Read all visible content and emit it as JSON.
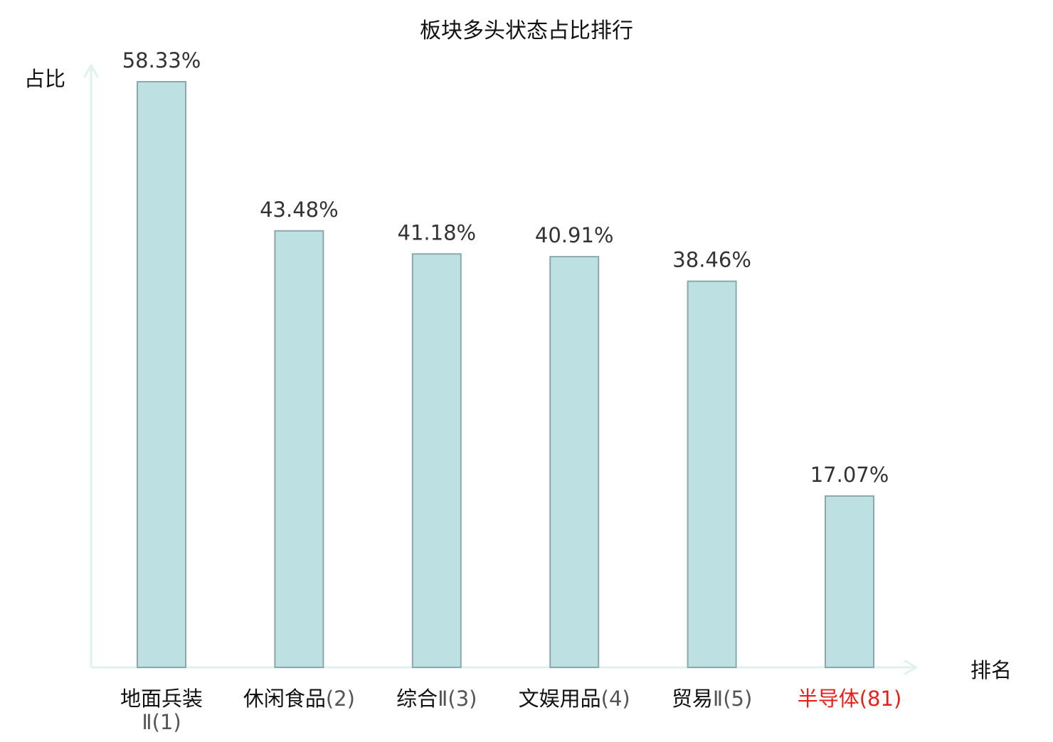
{
  "chart_data": {
    "type": "bar",
    "title": "板块多头状态占比排行",
    "ylabel": "占比",
    "xlabel": "排名",
    "ylim": [
      0,
      58.33
    ],
    "grid": false,
    "categories": [
      {
        "name": "地面兵装",
        "rank": "Ⅱ(1)",
        "highlight": false
      },
      {
        "name": "休闲食品",
        "rank": "(2)",
        "highlight": false
      },
      {
        "name": "综合",
        "rank": "Ⅱ(3)",
        "highlight": false
      },
      {
        "name": "文娱用品",
        "rank": "(4)",
        "highlight": false
      },
      {
        "name": "贸易",
        "rank": "Ⅱ(5)",
        "highlight": false
      },
      {
        "name": "半导体",
        "rank": "(81)",
        "highlight": true
      }
    ],
    "values": [
      58.33,
      43.48,
      41.18,
      40.91,
      38.46,
      17.07
    ],
    "value_labels": [
      "58.33%",
      "43.48%",
      "41.18%",
      "40.91%",
      "38.46%",
      "17.07%"
    ],
    "colors": {
      "bar_fill": "#bde0e3",
      "bar_stroke": "#8ca8aa",
      "axis": "#e0f2ef",
      "text": "#111111",
      "rank_text": "#555555",
      "value_text": "#333333",
      "highlight": "#e8201a"
    }
  }
}
